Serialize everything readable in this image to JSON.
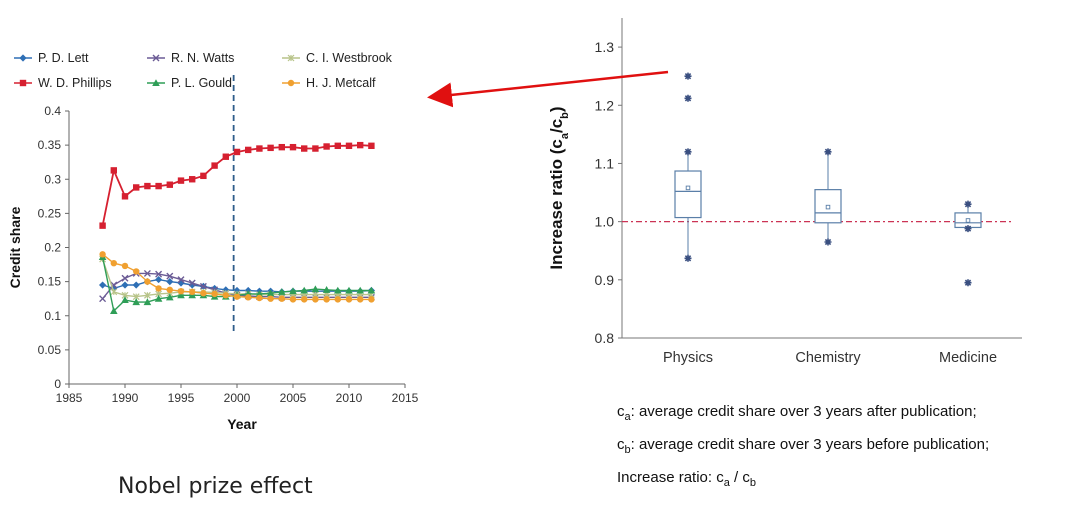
{
  "caption": "Nobel prize effect",
  "colors": {
    "lett": "#2e6fb5",
    "watts": "#6b5b95",
    "westbrook": "#b8c48a",
    "phillips": "#d62030",
    "gould": "#2f9e57",
    "metcalf": "#f0a030",
    "dashed_line": "#2e5c8a",
    "box": "#5a7fa8",
    "ref_line": "#cc3355",
    "arrow": "#e01010"
  },
  "notes": {
    "ca_symbol": "c",
    "ca_sub": "a",
    "ca_text": ": average credit share over 3 years after publication;",
    "cb_symbol": "c",
    "cb_sub": "b",
    "cb_text": ":  average credit share over 3 years before publication;",
    "ratio_prefix": "Increase ratio: c",
    "ratio_sub_a": "a",
    "ratio_mid": " / c",
    "ratio_sub_b": "b"
  },
  "chart_data": [
    {
      "type": "line",
      "xlabel": "Year",
      "ylabel": "Credit share",
      "xlim": [
        1985,
        2015
      ],
      "ylim": [
        0,
        0.4
      ],
      "x_ticks": [
        "1985",
        "1990",
        "1995",
        "2000",
        "2005",
        "2010",
        "2015"
      ],
      "y_ticks": [
        "0",
        "0.05",
        "0.1",
        "0.15",
        "0.2",
        "0.25",
        "0.3",
        "0.35",
        "0.4"
      ],
      "legend_placement": "top",
      "vertical_marker_x": 1999.7,
      "x": [
        1988,
        1989,
        1990,
        1991,
        1992,
        1993,
        1994,
        1995,
        1996,
        1997,
        1998,
        1999,
        2000,
        2001,
        2002,
        2003,
        2004,
        2005,
        2006,
        2007,
        2008,
        2009,
        2010,
        2011,
        2012
      ],
      "series": [
        {
          "name": "P. D. Lett",
          "color_key": "lett",
          "marker": "diamond",
          "values": [
            0.145,
            0.14,
            0.145,
            0.145,
            0.15,
            0.153,
            0.15,
            0.148,
            0.145,
            0.143,
            0.14,
            0.138,
            0.137,
            0.137,
            0.136,
            0.136,
            0.135,
            0.136,
            0.136,
            0.136,
            0.136,
            0.136,
            0.136,
            0.136,
            0.137
          ]
        },
        {
          "name": "R. N. Watts",
          "color_key": "watts",
          "marker": "cross",
          "values": [
            0.125,
            0.145,
            0.155,
            0.162,
            0.162,
            0.161,
            0.158,
            0.153,
            0.148,
            0.143,
            0.138,
            0.133,
            0.13,
            0.129,
            0.128,
            0.128,
            0.127,
            0.127,
            0.127,
            0.127,
            0.127,
            0.127,
            0.127,
            0.127,
            0.127
          ]
        },
        {
          "name": "C. I. Westbrook",
          "color_key": "westbrook",
          "marker": "x",
          "values": [
            0.183,
            0.135,
            0.13,
            0.128,
            0.13,
            0.132,
            0.133,
            0.135,
            0.135,
            0.135,
            0.134,
            0.133,
            0.132,
            0.132,
            0.131,
            0.131,
            0.131,
            0.131,
            0.131,
            0.131,
            0.131,
            0.131,
            0.131,
            0.131,
            0.131
          ]
        },
        {
          "name": "W. D. Phillips",
          "color_key": "phillips",
          "marker": "square",
          "values": [
            0.232,
            0.313,
            0.275,
            0.288,
            0.29,
            0.29,
            0.292,
            0.298,
            0.3,
            0.305,
            0.32,
            0.333,
            0.34,
            0.343,
            0.345,
            0.346,
            0.347,
            0.347,
            0.345,
            0.345,
            0.348,
            0.349,
            0.349,
            0.35,
            0.349
          ]
        },
        {
          "name": "P. L. Gould",
          "color_key": "gould",
          "marker": "triangle",
          "values": [
            0.186,
            0.107,
            0.123,
            0.12,
            0.12,
            0.125,
            0.127,
            0.13,
            0.13,
            0.13,
            0.128,
            0.128,
            0.13,
            0.132,
            0.132,
            0.133,
            0.135,
            0.136,
            0.137,
            0.139,
            0.138,
            0.137,
            0.137,
            0.137,
            0.137
          ]
        },
        {
          "name": "H. J. Metcalf",
          "color_key": "metcalf",
          "marker": "circle",
          "values": [
            0.19,
            0.177,
            0.173,
            0.165,
            0.15,
            0.14,
            0.138,
            0.136,
            0.135,
            0.133,
            0.132,
            0.13,
            0.128,
            0.127,
            0.126,
            0.125,
            0.125,
            0.124,
            0.124,
            0.124,
            0.124,
            0.124,
            0.124,
            0.124,
            0.124
          ]
        }
      ]
    },
    {
      "type": "box",
      "ylabel_main": "Increase ratio (c",
      "ylabel_sub_a": "a",
      "ylabel_slash": "/c",
      "ylabel_sub_b": "b",
      "ylabel_close": ")",
      "ylim": [
        0.8,
        1.35
      ],
      "y_ticks": [
        "0.8",
        "0.9",
        "1.0",
        "1.1",
        "1.2",
        "1.3"
      ],
      "reference_line": 1.0,
      "categories": [
        "Physics",
        "Chemistry",
        "Medicine"
      ],
      "boxes": [
        {
          "q1": 1.007,
          "median": 1.052,
          "q3": 1.087,
          "mean": 1.058,
          "whisker_low": 0.937,
          "whisker_high": 1.12,
          "outliers": [
            1.25,
            1.212,
            1.12,
            0.937
          ]
        },
        {
          "q1": 0.998,
          "median": 1.015,
          "q3": 1.055,
          "mean": 1.025,
          "whisker_low": 0.965,
          "whisker_high": 1.12,
          "outliers": [
            1.12,
            0.965
          ]
        },
        {
          "q1": 0.99,
          "median": 0.998,
          "q3": 1.015,
          "mean": 1.002,
          "whisker_low": 0.988,
          "whisker_high": 1.03,
          "outliers": [
            1.03,
            0.988,
            0.895
          ]
        }
      ]
    }
  ]
}
